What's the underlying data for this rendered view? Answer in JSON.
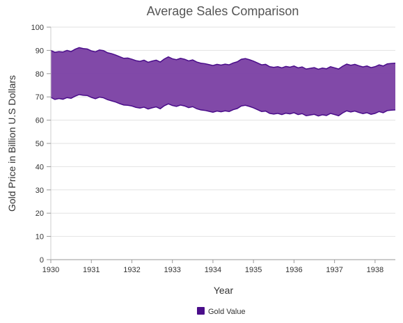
{
  "chart_data": {
    "type": "area",
    "subtype": "range-area",
    "title": "Average Sales Comparison",
    "xlabel": "Year",
    "ylabel": "Gold Price in Billion U.S Dollars",
    "xlim": [
      1930,
      1938.5
    ],
    "ylim": [
      0,
      100
    ],
    "x_ticks": [
      "1930",
      "1931",
      "1932",
      "1933",
      "1934",
      "1935",
      "1936",
      "1937",
      "1938"
    ],
    "y_ticks": [
      "0",
      "10",
      "20",
      "30",
      "40",
      "50",
      "60",
      "70",
      "80",
      "90",
      "100"
    ],
    "grid": "horizontal",
    "legend_position": "bottom",
    "series": [
      {
        "name": "Gold Value",
        "color": "#4a0d8a",
        "fill": "#7a3fa3",
        "x": [
          1930.0,
          1930.1,
          1930.2,
          1930.3,
          1930.4,
          1930.5,
          1930.6,
          1930.7,
          1930.8,
          1930.9,
          1931.0,
          1931.1,
          1931.2,
          1931.3,
          1931.4,
          1931.5,
          1931.6,
          1931.7,
          1931.8,
          1931.9,
          1932.0,
          1932.1,
          1932.2,
          1932.3,
          1932.4,
          1932.5,
          1932.6,
          1932.7,
          1932.8,
          1932.9,
          1933.0,
          1933.1,
          1933.2,
          1933.3,
          1933.4,
          1933.5,
          1933.6,
          1933.7,
          1933.8,
          1933.9,
          1934.0,
          1934.1,
          1934.2,
          1934.3,
          1934.4,
          1934.5,
          1934.6,
          1934.7,
          1934.8,
          1934.9,
          1935.0,
          1935.1,
          1935.2,
          1935.3,
          1935.4,
          1935.5,
          1935.6,
          1935.7,
          1935.8,
          1935.9,
          1936.0,
          1936.1,
          1936.2,
          1936.3,
          1936.4,
          1936.5,
          1936.6,
          1936.7,
          1936.8,
          1936.9,
          1937.0,
          1937.1,
          1937.2,
          1937.3,
          1937.4,
          1937.5,
          1937.6,
          1937.7,
          1937.8,
          1937.9,
          1938.0,
          1938.1,
          1938.2,
          1938.3,
          1938.4,
          1938.5
        ],
        "high": [
          90.0,
          89.2,
          89.5,
          89.3,
          90.0,
          89.5,
          90.5,
          91.2,
          90.8,
          90.6,
          89.8,
          89.4,
          90.2,
          89.9,
          89.0,
          88.6,
          88.0,
          87.3,
          86.6,
          86.7,
          86.2,
          85.6,
          85.3,
          85.8,
          84.9,
          85.4,
          85.8,
          85.0,
          86.3,
          87.2,
          86.4,
          86.0,
          86.6,
          86.2,
          85.5,
          85.9,
          85.0,
          84.5,
          84.3,
          83.9,
          83.5,
          84.0,
          83.7,
          84.1,
          83.8,
          84.6,
          85.1,
          86.2,
          86.5,
          86.0,
          85.4,
          84.6,
          83.8,
          84.0,
          83.0,
          82.7,
          83.0,
          82.5,
          83.1,
          82.8,
          83.3,
          82.5,
          82.9,
          82.0,
          82.3,
          82.6,
          81.9,
          82.4,
          82.1,
          83.0,
          82.5,
          82.0,
          83.2,
          84.1,
          83.6,
          84.0,
          83.4,
          82.9,
          83.3,
          82.6,
          83.0,
          83.8,
          83.3,
          84.2,
          84.4,
          84.5
        ],
        "low": [
          69.8,
          68.9,
          69.3,
          69.0,
          69.7,
          69.4,
          70.3,
          71.0,
          70.7,
          70.6,
          69.8,
          69.2,
          69.9,
          69.6,
          68.8,
          68.3,
          67.8,
          67.1,
          66.5,
          66.4,
          66.1,
          65.5,
          65.2,
          65.6,
          64.8,
          65.3,
          65.7,
          64.9,
          66.2,
          67.0,
          66.3,
          65.9,
          66.5,
          66.1,
          65.4,
          65.8,
          64.9,
          64.4,
          64.2,
          63.8,
          63.4,
          63.9,
          63.6,
          64.0,
          63.7,
          64.5,
          65.0,
          66.1,
          66.4,
          65.9,
          65.3,
          64.5,
          63.7,
          63.9,
          62.9,
          62.6,
          62.9,
          62.4,
          63.0,
          62.7,
          63.2,
          62.4,
          62.8,
          61.9,
          62.2,
          62.5,
          61.8,
          62.3,
          62.0,
          62.9,
          62.4,
          61.9,
          63.1,
          64.0,
          63.5,
          63.9,
          63.3,
          62.8,
          63.2,
          62.5,
          62.9,
          63.7,
          63.2,
          64.1,
          64.3,
          64.4
        ]
      }
    ]
  }
}
